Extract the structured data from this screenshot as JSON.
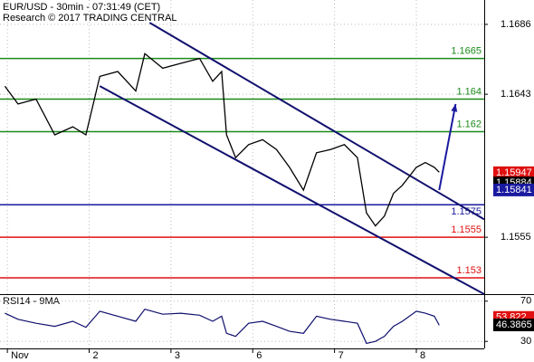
{
  "chart_data": {
    "type": "line",
    "title": "EUR/USD - 30min - 07:31:49 (CET)",
    "subtitle": "Research © 2017 TRADING CENTRAL",
    "x": [
      -0.03,
      0.13,
      0.35,
      0.58,
      0.8,
      0.96,
      1.13,
      1.35,
      1.57,
      1.68,
      1.9,
      2.12,
      2.35,
      2.51,
      2.62,
      2.68,
      2.79,
      2.95,
      3.12,
      3.29,
      3.45,
      3.62,
      3.78,
      3.95,
      4.12,
      4.28,
      4.39,
      4.5,
      4.61,
      4.72,
      4.83,
      5.0,
      5.11,
      5.22,
      5.28
    ],
    "xlim": [
      -0.09,
      5.83
    ],
    "xticks": [
      {
        "value": 0,
        "label": "Nov"
      },
      {
        "value": 1,
        "label": "2"
      },
      {
        "value": 2,
        "label": "3"
      },
      {
        "value": 3,
        "label": "6"
      },
      {
        "value": 4,
        "label": "7"
      },
      {
        "value": 5,
        "label": "8"
      }
    ],
    "series": [
      {
        "color": "#000000",
        "values": [
          1.1648,
          1.1637,
          1.164,
          1.1618,
          1.1623,
          1.1618,
          1.1654,
          1.1657,
          1.1645,
          1.1668,
          1.1659,
          1.1662,
          1.1665,
          1.1651,
          1.1657,
          1.1618,
          1.1604,
          1.1612,
          1.1615,
          1.1609,
          1.1598,
          1.1584,
          1.1607,
          1.1609,
          1.1612,
          1.1604,
          1.157,
          1.1562,
          1.1568,
          1.1582,
          1.1587,
          1.1598,
          1.1601,
          1.1598,
          1.1595
        ]
      }
    ],
    "ylim": [
      1.152,
      1.1701
    ],
    "yticks": [
      1.1686,
      1.1643,
      1.1555
    ],
    "grid": true,
    "levels": [
      {
        "value": 1.1665,
        "color": "#1a8a1a"
      },
      {
        "value": 1.164,
        "color": "#1a8a1a"
      },
      {
        "value": 1.162,
        "color": "#1a8a1a"
      },
      {
        "value": 1.1575,
        "color": "#1a1aa0"
      },
      {
        "value": 1.1555,
        "color": "#e01010"
      },
      {
        "value": 1.153,
        "color": "#e01010"
      }
    ],
    "channels": [
      {
        "x": [
          1.74,
          5.83
        ],
        "values": [
          1.1687,
          1.1566
        ],
        "color": "#10106e"
      },
      {
        "x": [
          1.13,
          5.83
        ],
        "values": [
          1.1648,
          1.152
        ],
        "color": "#10106e"
      }
    ],
    "arrow": {
      "x": [
        5.28,
        5.48
      ],
      "values": [
        1.1584,
        1.1637
      ],
      "color": "#1a1aa0"
    },
    "price_tags": [
      {
        "value": 1.15947,
        "color": "#e01010"
      },
      {
        "value": 1.15884,
        "color": "#000000"
      },
      {
        "value": 1.15841,
        "color": "#1a1aa0"
      }
    ],
    "rsi": {
      "label": "RSI14 - 9MA",
      "color": "#10106e",
      "values": [
        58,
        52,
        48,
        45,
        50,
        44,
        60,
        55,
        50,
        62,
        57,
        58,
        56,
        50,
        55,
        38,
        35,
        48,
        50,
        45,
        40,
        38,
        55,
        52,
        50,
        48,
        28,
        30,
        35,
        45,
        50,
        60,
        58,
        55,
        46
      ],
      "ylim": [
        23,
        77
      ],
      "yticks": [
        70,
        30
      ],
      "tags": [
        {
          "value": 53.822,
          "color": "#e01010"
        },
        {
          "value": 46.3865,
          "color": "#000000"
        }
      ]
    }
  }
}
